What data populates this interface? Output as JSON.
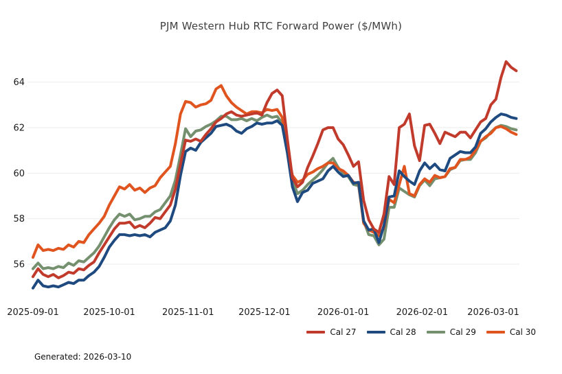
{
  "header": {
    "title": "PJM Western Hub RTC Forward Power ($/MWh)"
  },
  "footer": {
    "generated_label": "Generated: 2026-03-10"
  },
  "chart_data": {
    "type": "line",
    "title": "PJM Western Hub RTC Forward Power ($/MWh)",
    "ylabel": "",
    "xlabel": "",
    "grid": "horizontal",
    "legend_position": "bottom-right",
    "ylim": [
      54.6,
      65.3
    ],
    "yticks": [
      56,
      58,
      60,
      62,
      64
    ],
    "x_span_days": 190,
    "xticks": [
      {
        "label": "2025-09-01",
        "day": 0
      },
      {
        "label": "2025-10-01",
        "day": 30
      },
      {
        "label": "2025-11-01",
        "day": 61
      },
      {
        "label": "2025-12-01",
        "day": 91
      },
      {
        "label": "2026-01-01",
        "day": 122
      },
      {
        "label": "2026-02-01",
        "day": 153
      },
      {
        "label": "2026-03-01",
        "day": 181
      }
    ],
    "x": [
      "2025-09-01",
      "2025-09-03",
      "2025-09-05",
      "2025-09-07",
      "2025-09-09",
      "2025-09-11",
      "2025-09-13",
      "2025-09-15",
      "2025-09-17",
      "2025-09-19",
      "2025-09-21",
      "2025-09-23",
      "2025-09-25",
      "2025-09-27",
      "2025-09-29",
      "2025-10-01",
      "2025-10-03",
      "2025-10-05",
      "2025-10-07",
      "2025-10-09",
      "2025-10-11",
      "2025-10-13",
      "2025-10-15",
      "2025-10-17",
      "2025-10-19",
      "2025-10-21",
      "2025-10-23",
      "2025-10-25",
      "2025-10-27",
      "2025-10-29",
      "2025-10-31",
      "2025-11-02",
      "2025-11-04",
      "2025-11-06",
      "2025-11-08",
      "2025-11-10",
      "2025-11-12",
      "2025-11-14",
      "2025-11-16",
      "2025-11-18",
      "2025-11-20",
      "2025-11-22",
      "2025-11-24",
      "2025-11-26",
      "2025-11-28",
      "2025-11-30",
      "2025-12-02",
      "2025-12-04",
      "2025-12-06",
      "2025-12-08",
      "2025-12-10",
      "2025-12-12",
      "2025-12-14",
      "2025-12-16",
      "2025-12-18",
      "2025-12-20",
      "2025-12-22",
      "2025-12-24",
      "2025-12-26",
      "2025-12-28",
      "2025-12-30",
      "2026-01-01",
      "2026-01-03",
      "2026-01-05",
      "2026-01-07",
      "2026-01-09",
      "2026-01-11",
      "2026-01-13",
      "2026-01-15",
      "2026-01-17",
      "2026-01-19",
      "2026-01-21",
      "2026-01-23",
      "2026-01-25",
      "2026-01-27",
      "2026-01-29",
      "2026-01-31",
      "2026-02-02",
      "2026-02-04",
      "2026-02-06",
      "2026-02-08",
      "2026-02-10",
      "2026-02-12",
      "2026-02-14",
      "2026-02-16",
      "2026-02-18",
      "2026-02-20",
      "2026-02-22",
      "2026-02-24",
      "2026-02-26",
      "2026-02-28",
      "2026-03-02",
      "2026-03-04",
      "2026-03-06",
      "2026-03-08",
      "2026-03-10"
    ],
    "series": [
      {
        "name": "Cal 27",
        "color": "#c13b2c",
        "values": [
          55.45,
          55.8,
          55.55,
          55.45,
          55.55,
          55.4,
          55.5,
          55.65,
          55.6,
          55.8,
          55.75,
          55.95,
          56.1,
          56.5,
          56.85,
          57.2,
          57.55,
          57.8,
          57.8,
          57.85,
          57.6,
          57.7,
          57.6,
          57.8,
          58.05,
          58.0,
          58.3,
          58.6,
          59.3,
          60.4,
          61.45,
          61.4,
          61.5,
          61.4,
          61.7,
          61.95,
          62.25,
          62.4,
          62.6,
          62.7,
          62.55,
          62.5,
          62.55,
          62.6,
          62.65,
          62.55,
          63.1,
          63.5,
          63.65,
          63.4,
          61.5,
          59.8,
          59.4,
          59.6,
          60.25,
          60.75,
          61.3,
          61.9,
          62.0,
          62.0,
          61.5,
          61.25,
          60.8,
          60.3,
          60.5,
          58.8,
          57.95,
          57.55,
          57.4,
          58.2,
          59.85,
          59.5,
          62.0,
          62.15,
          62.6,
          61.2,
          60.55,
          62.1,
          62.15,
          61.75,
          61.3,
          61.8,
          61.7,
          61.6,
          61.8,
          61.8,
          61.55,
          61.9,
          62.25,
          62.4,
          63.0,
          63.25,
          64.2,
          64.9,
          64.65,
          64.5
        ]
      },
      {
        "name": "Cal 28",
        "color": "#1e4a80",
        "values": [
          54.95,
          55.3,
          55.05,
          55.0,
          55.05,
          55.0,
          55.1,
          55.2,
          55.15,
          55.3,
          55.3,
          55.5,
          55.65,
          55.9,
          56.3,
          56.75,
          57.05,
          57.3,
          57.3,
          57.25,
          57.3,
          57.25,
          57.3,
          57.2,
          57.4,
          57.5,
          57.6,
          57.9,
          58.6,
          59.9,
          60.95,
          61.1,
          61.0,
          61.35,
          61.55,
          61.75,
          62.05,
          62.1,
          62.15,
          62.05,
          61.85,
          61.75,
          61.95,
          62.05,
          62.2,
          62.15,
          62.2,
          62.2,
          62.3,
          62.1,
          60.9,
          59.4,
          58.75,
          59.15,
          59.25,
          59.55,
          59.65,
          59.75,
          60.1,
          60.3,
          60.05,
          59.85,
          59.9,
          59.55,
          59.6,
          57.9,
          57.5,
          57.55,
          56.95,
          57.7,
          58.95,
          59.0,
          60.1,
          59.85,
          59.65,
          59.5,
          60.1,
          60.45,
          60.2,
          60.4,
          60.15,
          60.1,
          60.65,
          60.8,
          60.95,
          60.9,
          60.9,
          61.15,
          61.75,
          61.95,
          62.25,
          62.45,
          62.6,
          62.55,
          62.45,
          62.4
        ]
      },
      {
        "name": "Cal 29",
        "color": "#75906e",
        "values": [
          55.8,
          56.05,
          55.8,
          55.85,
          55.8,
          55.9,
          55.85,
          56.05,
          55.95,
          56.15,
          56.1,
          56.3,
          56.5,
          56.8,
          57.2,
          57.6,
          57.95,
          58.2,
          58.1,
          58.2,
          57.95,
          58.0,
          58.1,
          58.1,
          58.3,
          58.4,
          58.7,
          59.0,
          59.7,
          60.8,
          61.95,
          61.6,
          61.85,
          61.9,
          62.05,
          62.15,
          62.3,
          62.5,
          62.5,
          62.35,
          62.35,
          62.4,
          62.3,
          62.4,
          62.3,
          62.45,
          62.55,
          62.45,
          62.5,
          62.2,
          61.0,
          59.7,
          59.1,
          59.25,
          59.5,
          59.7,
          59.9,
          60.15,
          60.45,
          60.65,
          60.25,
          60.0,
          59.85,
          59.5,
          59.45,
          57.9,
          57.3,
          57.25,
          56.85,
          57.1,
          58.5,
          58.5,
          59.35,
          59.2,
          59.05,
          58.95,
          59.45,
          59.7,
          59.45,
          59.75,
          59.8,
          59.85,
          60.15,
          60.25,
          60.55,
          60.6,
          60.6,
          60.9,
          61.4,
          61.55,
          61.8,
          62.0,
          62.1,
          62.05,
          61.95,
          61.9
        ]
      },
      {
        "name": "Cal 30",
        "color": "#e0551f",
        "values": [
          56.3,
          56.85,
          56.6,
          56.65,
          56.6,
          56.7,
          56.65,
          56.85,
          56.75,
          57.0,
          56.95,
          57.3,
          57.55,
          57.8,
          58.1,
          58.6,
          59.0,
          59.4,
          59.3,
          59.5,
          59.25,
          59.35,
          59.15,
          59.35,
          59.45,
          59.8,
          60.05,
          60.3,
          61.3,
          62.6,
          63.15,
          63.1,
          62.9,
          63.0,
          63.05,
          63.2,
          63.7,
          63.85,
          63.4,
          63.1,
          62.9,
          62.75,
          62.6,
          62.7,
          62.7,
          62.65,
          62.8,
          62.75,
          62.8,
          62.45,
          61.0,
          59.9,
          59.6,
          59.7,
          59.95,
          60.05,
          60.2,
          60.3,
          60.45,
          60.45,
          60.2,
          60.1,
          59.9,
          59.6,
          59.55,
          57.8,
          57.5,
          57.4,
          57.25,
          57.6,
          58.85,
          58.7,
          59.5,
          60.3,
          59.1,
          59.0,
          59.5,
          59.75,
          59.6,
          59.9,
          59.8,
          59.85,
          60.2,
          60.25,
          60.6,
          60.6,
          60.7,
          61.0,
          61.4,
          61.6,
          61.75,
          62.0,
          62.05,
          61.95,
          61.8,
          61.7
        ]
      }
    ],
    "draw_order": [
      "Cal 29",
      "Cal 30",
      "Cal 28",
      "Cal 27"
    ]
  }
}
